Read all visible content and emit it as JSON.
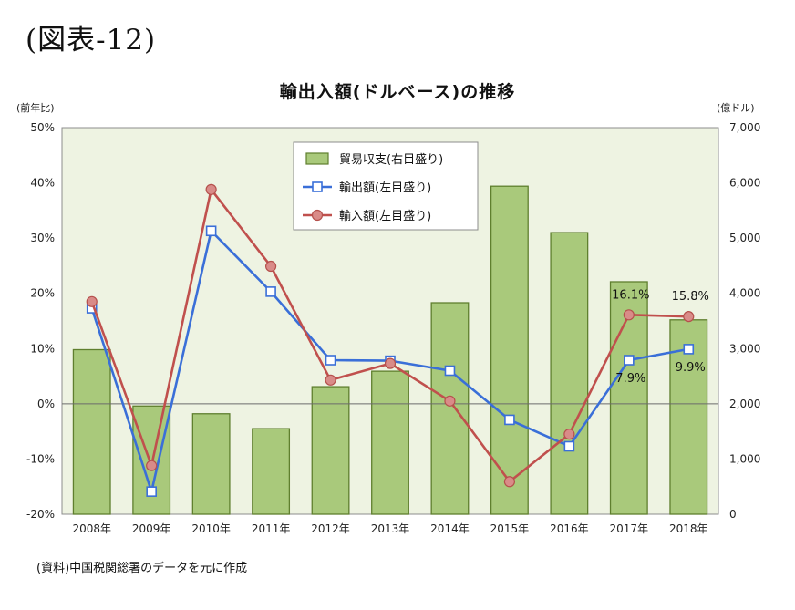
{
  "figure_label": "(図表-12)",
  "source_note": "(資料)中国税関総署のデータを元に作成",
  "chart_data": {
    "type": "bar+line",
    "title": "輸出入額(ドルベース)の推移",
    "y_left_unit": "(前年比)",
    "y_right_unit": "(億ドル)",
    "y_left_range": [
      -20,
      50
    ],
    "y_left_ticks": [
      "50%",
      "40%",
      "30%",
      "20%",
      "10%",
      "0%",
      "-10%",
      "-20%"
    ],
    "y_right_range": [
      0,
      7000
    ],
    "y_right_ticks": [
      "7,000",
      "6,000",
      "5,000",
      "4,000",
      "3,000",
      "2,000",
      "1,000",
      "0"
    ],
    "categories": [
      "2008年",
      "2009年",
      "2010年",
      "2011年",
      "2012年",
      "2013年",
      "2014年",
      "2015年",
      "2016年",
      "2017年",
      "2018年"
    ],
    "series": [
      {
        "name": "貿易収支(右目盛り)",
        "kind": "bar",
        "axis": "right",
        "color": "#a9c97b",
        "border": "#5f7f2e",
        "values": [
          2980,
          1960,
          1820,
          1550,
          2310,
          2590,
          3830,
          5940,
          5100,
          4210,
          3520
        ]
      },
      {
        "name": "輸出額(左目盛り)",
        "kind": "line",
        "axis": "left",
        "color": "#3a6fd8",
        "marker": "square",
        "values": [
          17.3,
          -15.9,
          31.3,
          20.3,
          7.9,
          7.8,
          6.0,
          -2.9,
          -7.7,
          7.9,
          9.9
        ]
      },
      {
        "name": "輸入額(左目盛り)",
        "kind": "line",
        "axis": "left",
        "color": "#c0504d",
        "marker": "circle",
        "values": [
          18.5,
          -11.2,
          38.8,
          24.9,
          4.3,
          7.3,
          0.5,
          -14.1,
          -5.5,
          16.1,
          15.8
        ]
      }
    ],
    "annotations": [
      {
        "text": "16.1%",
        "category": "2017年",
        "series": "輸入額(左目盛り)"
      },
      {
        "text": "15.8%",
        "category": "2018年",
        "series": "輸入額(左目盛り)"
      },
      {
        "text": "7.9%",
        "category": "2017年",
        "series": "輸出額(左目盛り)"
      },
      {
        "text": "9.9%",
        "category": "2018年",
        "series": "輸出額(左目盛り)"
      }
    ],
    "legend_position": "top-center",
    "grid": false,
    "plot_background": "#eef3e2"
  }
}
